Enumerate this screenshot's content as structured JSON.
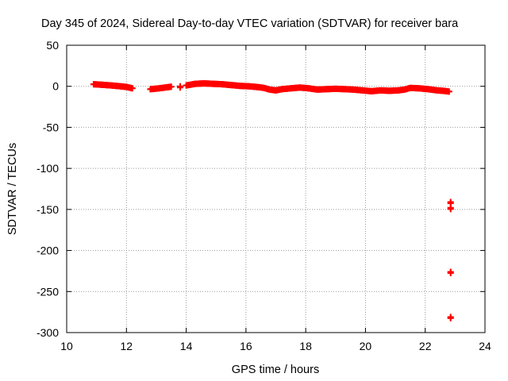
{
  "chart_data": {
    "type": "scatter",
    "title": "Day 345 of 2024, Sidereal Day-to-day VTEC variation (SDTVAR) for receiver bara",
    "xlabel": "GPS time / hours",
    "ylabel": "SDTVAR / TECUs",
    "xlim": [
      10,
      24
    ],
    "ylim": [
      -300,
      50
    ],
    "xticks": [
      10,
      12,
      14,
      16,
      18,
      20,
      22,
      24
    ],
    "yticks": [
      50,
      0,
      -50,
      -100,
      -150,
      -200,
      -250,
      -300
    ],
    "grid": true,
    "marker": "+",
    "series_color": "#ff0000",
    "segments": [
      {
        "name": "main",
        "points": [
          [
            10.9,
            2.5
          ],
          [
            11.2,
            1.8
          ],
          [
            11.5,
            1.0
          ],
          [
            11.8,
            0
          ],
          [
            12.0,
            -0.8
          ],
          [
            12.2,
            -2.5
          ]
        ]
      },
      {
        "name": "main",
        "points": [
          [
            12.8,
            -3.5
          ],
          [
            13.1,
            -2.5
          ],
          [
            13.4,
            -1.0
          ],
          [
            13.5,
            -0.5
          ]
        ]
      },
      {
        "name": "main",
        "points": [
          [
            14.0,
            1.0
          ],
          [
            14.3,
            3.0
          ],
          [
            14.6,
            3.5
          ],
          [
            14.9,
            3.0
          ],
          [
            15.2,
            2.5
          ],
          [
            15.5,
            1.5
          ],
          [
            15.8,
            0.5
          ],
          [
            16.1,
            0
          ],
          [
            16.4,
            -1.0
          ],
          [
            16.6,
            -2.0
          ],
          [
            16.8,
            -4.0
          ],
          [
            17.0,
            -5.0
          ],
          [
            17.2,
            -3.5
          ],
          [
            17.5,
            -2.5
          ],
          [
            17.8,
            -1.5
          ],
          [
            18.1,
            -2.5
          ],
          [
            18.4,
            -4.0
          ],
          [
            18.7,
            -3.5
          ],
          [
            19.0,
            -3.0
          ],
          [
            19.3,
            -3.5
          ],
          [
            19.6,
            -4.0
          ],
          [
            19.9,
            -5.0
          ],
          [
            20.2,
            -6.0
          ],
          [
            20.5,
            -5.0
          ],
          [
            20.8,
            -5.5
          ],
          [
            21.1,
            -5.0
          ],
          [
            21.3,
            -4.0
          ],
          [
            21.5,
            -2.0
          ],
          [
            21.8,
            -2.5
          ],
          [
            22.1,
            -3.5
          ],
          [
            22.4,
            -5.0
          ],
          [
            22.6,
            -5.5
          ],
          [
            22.8,
            -6.5
          ]
        ]
      }
    ],
    "isolated_points": [
      [
        13.8,
        0
      ],
      [
        22.85,
        -141
      ],
      [
        22.85,
        -148
      ],
      [
        22.85,
        -226
      ],
      [
        22.85,
        -281
      ]
    ]
  }
}
